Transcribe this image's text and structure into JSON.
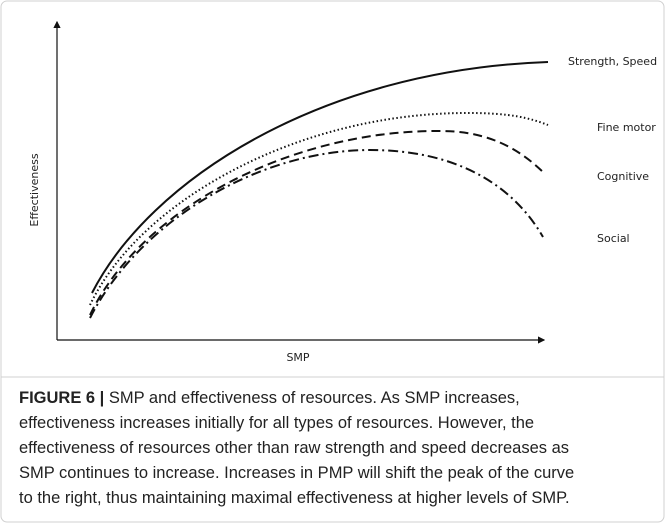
{
  "figure": {
    "y_axis_label": "Effectiveness",
    "x_axis_label": "SMP",
    "curve_labels": [
      "Strength, Speed",
      "Fine motor",
      "Cognitive",
      "Social"
    ],
    "caption_label": "FIGURE 6 |",
    "caption_lines": [
      " SMP and effectiveness of resources. As SMP increases,",
      "effectiveness increases initially for all types of resources. However, the",
      "effectiveness of resources other than raw strength and speed decreases as",
      "SMP continues to increase. Increases in PMP will shift the peak of the curve",
      "to the right, thus maintaining maximal effectiveness at higher levels of SMP."
    ]
  }
}
